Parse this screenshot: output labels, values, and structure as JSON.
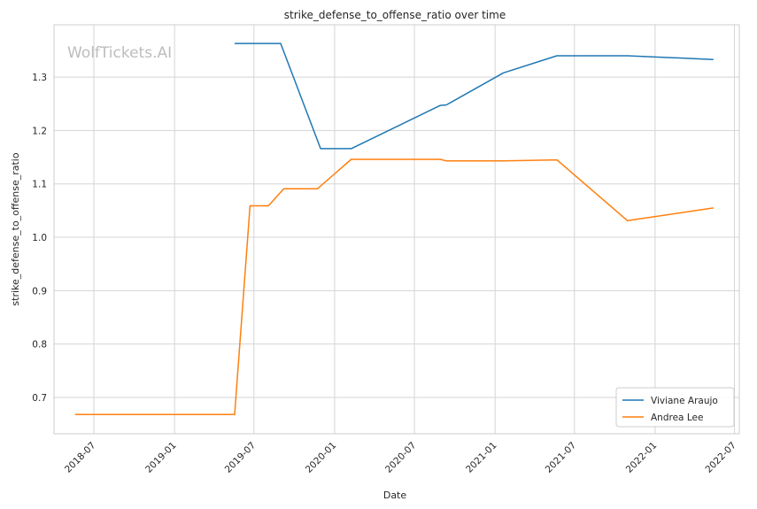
{
  "chart_data": {
    "type": "line",
    "title": "strike_defense_to_offense_ratio over time",
    "xlabel": "Date",
    "ylabel": "strike_defense_to_offense_ratio",
    "watermark": "WolfTickets.AI",
    "legend_position": "bottom-right",
    "grid": true,
    "x_range": [
      "2018-04-01",
      "2022-07-12"
    ],
    "ylim": [
      0.632,
      1.398
    ],
    "x_ticks": [
      "2018-07",
      "2019-01",
      "2019-07",
      "2020-01",
      "2020-07",
      "2021-01",
      "2021-07",
      "2022-01",
      "2022-07"
    ],
    "y_ticks": [
      "0.7",
      "0.8",
      "0.9",
      "1.0",
      "1.1",
      "1.2",
      "1.3"
    ],
    "series": [
      {
        "name": "Viviane Araujo",
        "color": "#1f77b4",
        "points": [
          [
            "2019-05-18",
            1.363
          ],
          [
            "2019-08-31",
            1.363
          ],
          [
            "2019-11-30",
            1.166
          ],
          [
            "2020-02-08",
            1.166
          ],
          [
            "2020-08-29",
            1.247
          ],
          [
            "2020-09-12",
            1.248
          ],
          [
            "2021-01-20",
            1.308
          ],
          [
            "2021-05-22",
            1.34
          ],
          [
            "2021-10-30",
            1.34
          ],
          [
            "2022-05-14",
            1.333
          ]
        ]
      },
      {
        "name": "Andrea Lee",
        "color": "#ff7f0e",
        "points": [
          [
            "2018-05-19",
            0.668
          ],
          [
            "2019-05-18",
            0.668
          ],
          [
            "2019-06-22",
            1.059
          ],
          [
            "2019-08-03",
            1.059
          ],
          [
            "2019-09-07",
            1.091
          ],
          [
            "2019-11-23",
            1.091
          ],
          [
            "2020-02-08",
            1.146
          ],
          [
            "2020-08-29",
            1.146
          ],
          [
            "2020-09-12",
            1.143
          ],
          [
            "2021-01-20",
            1.143
          ],
          [
            "2021-05-22",
            1.145
          ],
          [
            "2021-10-30",
            1.031
          ],
          [
            "2022-05-14",
            1.055
          ]
        ]
      }
    ]
  }
}
